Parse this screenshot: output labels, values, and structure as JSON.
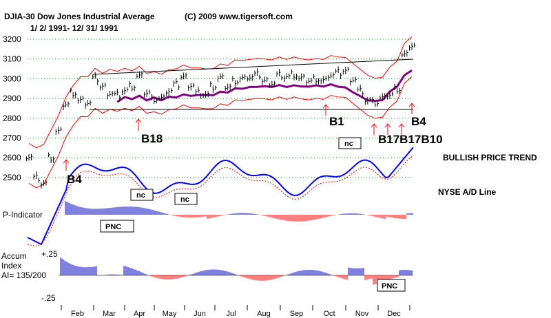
{
  "header": {
    "ticker_title": "DJIA-30  Dow Jones Industrial Average",
    "copyright": "(C) 2009 www.tigersoft.com",
    "date_range": "1/ 2/ 1991- 12/ 31/ 1991"
  },
  "labels": {
    "price_trend": "BULLISH PRICE TREND",
    "ad_line": "NYSE A/D Line",
    "p_indicator": "P-Indicator",
    "accum_line1": "Accum",
    "accum_line2": "Index",
    "accum_line3": "AI= 135/200",
    "accum_plus": "+.25",
    "accum_minus": "-.25"
  },
  "boxes": {
    "nc1": "nc",
    "nc2": "nc",
    "nc3": "nc",
    "pnc1": "PNC",
    "pnc2": "PNC"
  },
  "signals": {
    "b4_left": "B4",
    "b18": "B18",
    "b1": "B1",
    "b_cluster": "B17B17B10",
    "b4_right": "B4"
  },
  "colors": {
    "price_bars": "#000000",
    "upper_band": "#ff0000",
    "ma_long": "#800080",
    "ad_line": "#0000ff",
    "ad_ma": "#ff0000",
    "hist_pos": "#0000c0",
    "hist_neg": "#ff0000",
    "grid": "#008000",
    "arrow": "#ff0000"
  },
  "chart_data": {
    "type": "line",
    "title": "DJIA-30  Dow Jones Industrial Average",
    "ylabel": "",
    "xlabel": "",
    "ylim": [
      2430,
      3230
    ],
    "yticks": [
      2500,
      2600,
      2700,
      2800,
      2900,
      3000,
      3100,
      3200
    ],
    "months": [
      "Feb",
      "Mar",
      "Apr",
      "May",
      "Jun",
      "Jul",
      "Aug",
      "Sep",
      "Oct",
      "Nov",
      "Dec"
    ],
    "grid": true,
    "series": [
      {
        "name": "DJIA-30",
        "x": [
          "Jan 2",
          "Jan 9",
          "Jan 16",
          "Jan 23",
          "Jan 30",
          "Feb 6",
          "Feb 13",
          "Feb 20",
          "Feb 27",
          "Mar 6",
          "Mar 13",
          "Mar 20",
          "Mar 27",
          "Apr 3",
          "Apr 10",
          "Apr 17",
          "Apr 24",
          "May 1",
          "May 8",
          "May 15",
          "May 22",
          "May 29",
          "Jun 5",
          "Jun 12",
          "Jun 19",
          "Jun 26",
          "Jul 3",
          "Jul 10",
          "Jul 17",
          "Jul 24",
          "Jul 31",
          "Aug 7",
          "Aug 14",
          "Aug 21",
          "Aug 28",
          "Sep 4",
          "Sep 11",
          "Sep 18",
          "Sep 25",
          "Oct 2",
          "Oct 9",
          "Oct 16",
          "Oct 23",
          "Oct 30",
          "Nov 6",
          "Nov 13",
          "Nov 20",
          "Nov 27",
          "Dec 4",
          "Dec 11",
          "Dec 18",
          "Dec 24",
          "Dec 31"
        ],
        "values": [
          2610,
          2500,
          2470,
          2600,
          2730,
          2870,
          2930,
          2890,
          2880,
          3000,
          2960,
          2930,
          2920,
          2940,
          2960,
          3010,
          2930,
          2900,
          2900,
          2940,
          2970,
          3010,
          2970,
          2930,
          2920,
          2960,
          3000,
          2960,
          2990,
          3000,
          3010,
          3020,
          2990,
          2980,
          3020,
          3010,
          3020,
          3000,
          2990,
          3000,
          2990,
          3020,
          3030,
          3040,
          3000,
          2940,
          2890,
          2880,
          2900,
          2920,
          2950,
          3120,
          3170
        ]
      }
    ],
    "annotations": [
      "B4",
      "B18",
      "B1",
      "B17B17B10",
      "B4"
    ]
  }
}
